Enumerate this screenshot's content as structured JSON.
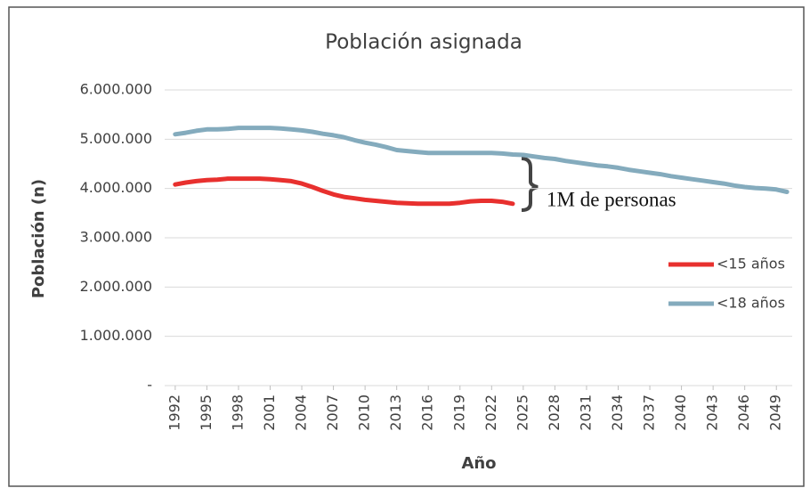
{
  "chart_data": {
    "type": "line",
    "title": "Población asignada",
    "y_label": "Población (n)",
    "x_label": "Año",
    "annotation": "1M de personas",
    "x": [
      1992,
      1993,
      1994,
      1995,
      1996,
      1997,
      1998,
      1999,
      2000,
      2001,
      2002,
      2003,
      2004,
      2005,
      2006,
      2007,
      2008,
      2009,
      2010,
      2011,
      2012,
      2013,
      2014,
      2015,
      2016,
      2017,
      2018,
      2019,
      2020,
      2021,
      2022,
      2023,
      2024,
      2025,
      2026,
      2027,
      2028,
      2029,
      2030,
      2031,
      2032,
      2033,
      2034,
      2035,
      2036,
      2037,
      2038,
      2039,
      2040,
      2041,
      2042,
      2043,
      2044,
      2045,
      2046,
      2047,
      2048,
      2049,
      2050
    ],
    "series": [
      {
        "name": "<15 años",
        "color": "#e8302e",
        "values": [
          4080000,
          4120000,
          4150000,
          4170000,
          4180000,
          4200000,
          4200000,
          4200000,
          4200000,
          4190000,
          4170000,
          4150000,
          4100000,
          4030000,
          3950000,
          3880000,
          3830000,
          3800000,
          3770000,
          3750000,
          3730000,
          3710000,
          3700000,
          3690000,
          3690000,
          3690000,
          3690000,
          3710000,
          3740000,
          3750000,
          3750000,
          3730000,
          3690000,
          null,
          null,
          null,
          null,
          null,
          null,
          null,
          null,
          null,
          null,
          null,
          null,
          null,
          null,
          null,
          null,
          null,
          null,
          null,
          null,
          null,
          null,
          null,
          null,
          null,
          null
        ]
      },
      {
        "name": "<18 años",
        "color": "#84abbd",
        "values": [
          5100000,
          5130000,
          5170000,
          5200000,
          5200000,
          5210000,
          5230000,
          5230000,
          5230000,
          5230000,
          5220000,
          5200000,
          5180000,
          5150000,
          5110000,
          5080000,
          5040000,
          4980000,
          4930000,
          4890000,
          4840000,
          4780000,
          4760000,
          4740000,
          4720000,
          4720000,
          4720000,
          4720000,
          4720000,
          4720000,
          4720000,
          4710000,
          4690000,
          4680000,
          4650000,
          4620000,
          4600000,
          4560000,
          4530000,
          4500000,
          4470000,
          4450000,
          4420000,
          4380000,
          4350000,
          4320000,
          4290000,
          4250000,
          4220000,
          4190000,
          4160000,
          4130000,
          4100000,
          4060000,
          4030000,
          4010000,
          4000000,
          3980000,
          3930000
        ]
      }
    ],
    "xlim": [
      1991,
      2050.5
    ],
    "xticks": [
      1992,
      1995,
      1998,
      2001,
      2004,
      2007,
      2010,
      2013,
      2016,
      2019,
      2022,
      2025,
      2028,
      2031,
      2034,
      2037,
      2040,
      2043,
      2046,
      2049
    ],
    "ylim": [
      0,
      6000000
    ],
    "yticks": [
      {
        "value": 0,
        "label": "-"
      },
      {
        "value": 1000000,
        "label": "1.000.000"
      },
      {
        "value": 2000000,
        "label": "2.000.000"
      },
      {
        "value": 3000000,
        "label": "3.000.000"
      },
      {
        "value": 4000000,
        "label": "4.000.000"
      },
      {
        "value": 5000000,
        "label": "5.000.000"
      },
      {
        "value": 6000000,
        "label": "6.000.000"
      }
    ],
    "grid": true,
    "legend": "right"
  }
}
